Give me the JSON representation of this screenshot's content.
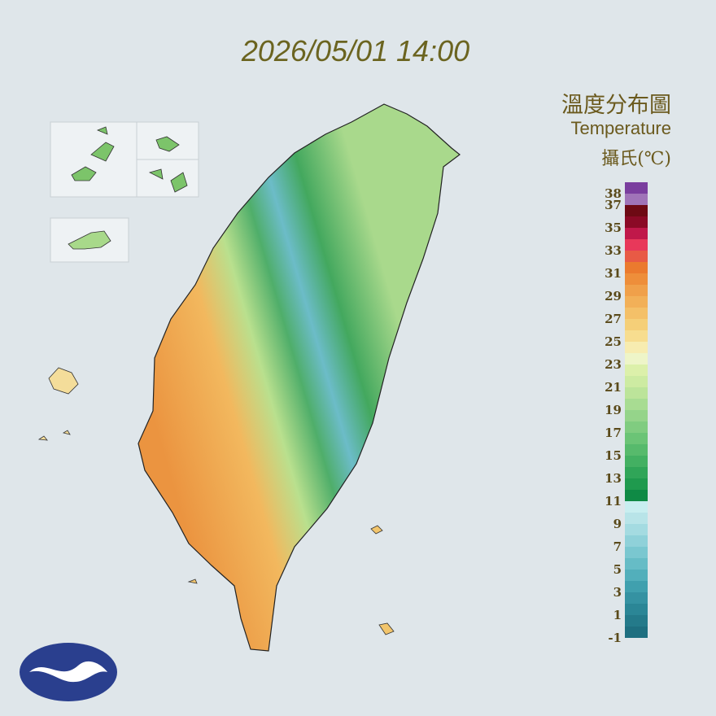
{
  "header": {
    "title": "2026/05/01 14:00"
  },
  "legend": {
    "title": "溫度分布圖",
    "subtitle": "Temperature",
    "unit": "攝氏(℃)",
    "ticks": [
      38,
      37,
      35,
      33,
      31,
      29,
      27,
      25,
      23,
      21,
      19,
      17,
      15,
      13,
      11,
      9,
      7,
      5,
      3,
      1,
      -1
    ],
    "colors": [
      "#1e6f80",
      "#247a8a",
      "#2b8696",
      "#3592a2",
      "#40a0ae",
      "#52afbb",
      "#66bcc6",
      "#7ac7d0",
      "#8fd1d9",
      "#a4dbe1",
      "#b8e4e8",
      "#c8eef0",
      "#0f8a45",
      "#1f9a4e",
      "#30a558",
      "#43b062",
      "#57ba6c",
      "#6bc476",
      "#80cc80",
      "#95d48a",
      "#a8dc92",
      "#bce49a",
      "#cdeba2",
      "#dcf0aa",
      "#eef5c8",
      "#f7ecb0",
      "#f7dd8f",
      "#f5cf78",
      "#f4c068",
      "#f2b058",
      "#f0a04a",
      "#ee8e3a",
      "#eb7a2e",
      "#e85a45",
      "#e8385a",
      "#c0184a",
      "#8b0a26",
      "#6e0a14",
      "#a074b8",
      "#7a3e9e"
    ]
  }
}
